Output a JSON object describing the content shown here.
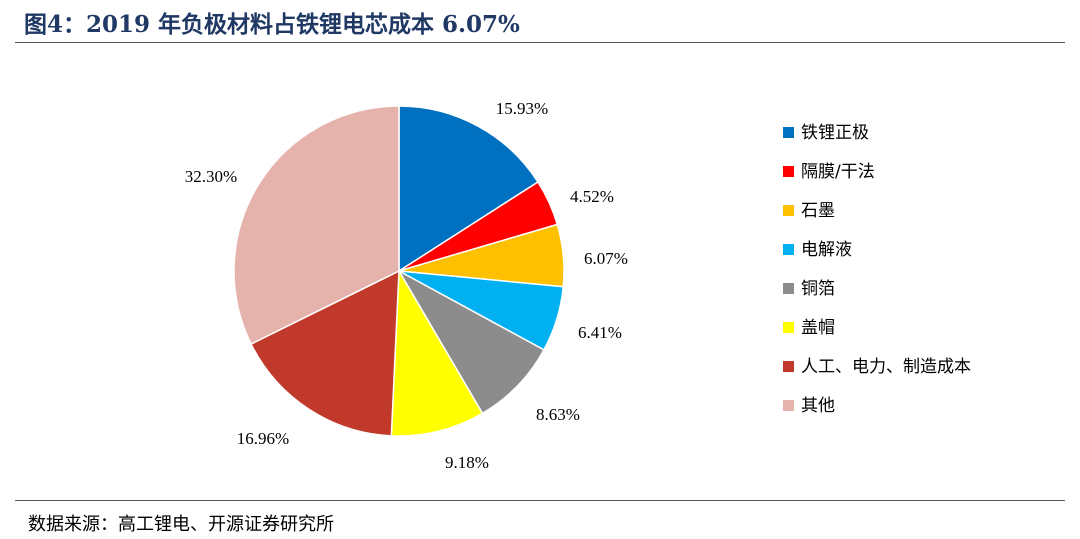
{
  "title": "图4：2019 年负极材料占铁锂电芯成本 6.07%",
  "source": "数据来源：高工锂电、开源证券研究所",
  "chart_data": {
    "type": "pie",
    "title": "",
    "start": "12 o'clock",
    "direction": "clockwise",
    "legend_position": "right",
    "slices": [
      {
        "name": "铁锂正极",
        "value": 15.93,
        "label": "15.93%",
        "color": "#0070c0"
      },
      {
        "name": "隔膜/干法",
        "value": 4.52,
        "label": "4.52%",
        "color": "#ff0000"
      },
      {
        "name": "石墨",
        "value": 6.07,
        "label": "6.07%",
        "color": "#ffc000"
      },
      {
        "name": "电解液",
        "value": 6.41,
        "label": "6.41%",
        "color": "#00b0f0"
      },
      {
        "name": "铜箔",
        "value": 8.63,
        "label": "8.63%",
        "color": "#8c8c8c"
      },
      {
        "name": "盖帽",
        "value": 9.18,
        "label": "9.18%",
        "color": "#ffff00"
      },
      {
        "name": "人工、电力、制造成本",
        "value": 16.96,
        "label": "16.96%",
        "color": "#c0392b"
      },
      {
        "name": "其他",
        "value": 32.3,
        "label": "32.30%",
        "color": "#e6b2ac"
      }
    ]
  }
}
